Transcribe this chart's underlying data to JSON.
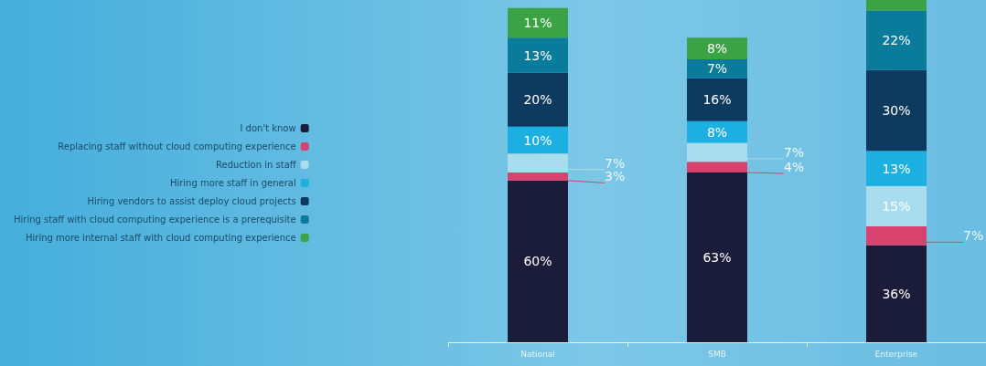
{
  "chart_data": {
    "type": "bar",
    "stacked": true,
    "categories": [
      "National",
      "SMB",
      "Enterprise"
    ],
    "series": [
      {
        "name": "I don't know",
        "color": "#1a1c3a",
        "values": [
          60,
          63,
          36
        ],
        "value_labels": [
          "60%",
          "63%",
          "36%"
        ]
      },
      {
        "name": "Replacing staff without cloud computing experience",
        "color": "#d8426f",
        "values": [
          3,
          4,
          7
        ],
        "value_labels": [
          "3%",
          "4%",
          "7%"
        ]
      },
      {
        "name": "Reduction in staff",
        "color": "#a9dcec",
        "values": [
          7,
          7,
          15
        ],
        "value_labels": [
          "7%",
          "7%",
          "15%"
        ]
      },
      {
        "name": "Hiring more staff in general",
        "color": "#1cb0e2",
        "values": [
          10,
          8,
          13
        ],
        "value_labels": [
          "10%",
          "8%",
          "13%"
        ]
      },
      {
        "name": "Hiring vendors to assist deploy cloud projects",
        "color": "#0f3a5f",
        "values": [
          20,
          16,
          30
        ],
        "value_labels": [
          "20%",
          "16%",
          "30%"
        ]
      },
      {
        "name": "Hiring staff with cloud computing experience is a prerequisite",
        "color": "#0b7b9c",
        "values": [
          13,
          7,
          22
        ],
        "value_labels": [
          "13%",
          "7%",
          "22%"
        ]
      },
      {
        "name": "Hiring more internal staff with cloud computing experience",
        "color": "#3ba345",
        "values": [
          11,
          8,
          4
        ],
        "value_labels": [
          "11%",
          "8%",
          null
        ]
      }
    ],
    "legend": "left"
  }
}
